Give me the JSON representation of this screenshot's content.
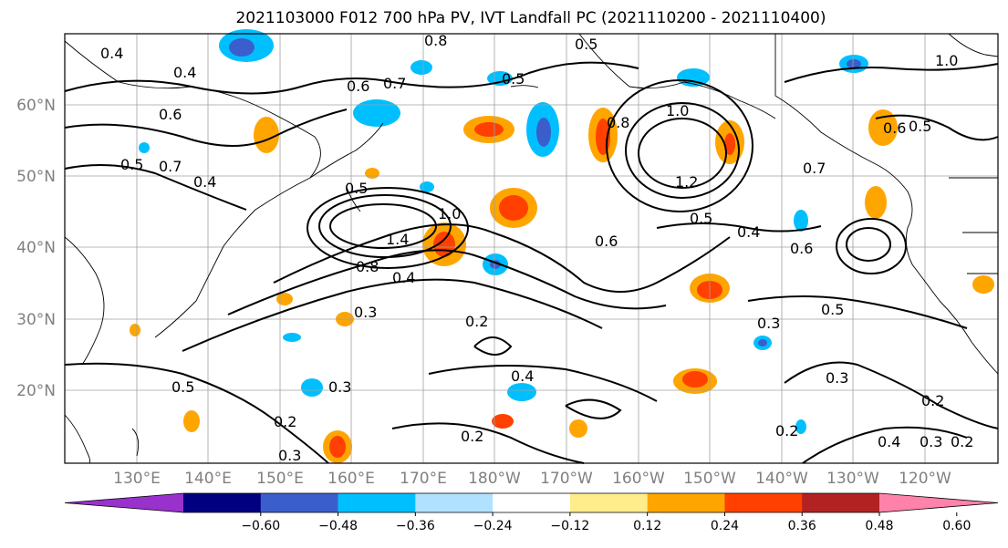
{
  "title": "2021103000 F012 700 hPa PV, IVT Landfall PC (2021110200 - 2021110400)",
  "lat_labels": [
    "60°N",
    "50°N",
    "40°N",
    "30°N",
    "20°N"
  ],
  "lon_labels": [
    "130°E",
    "140°E",
    "150°E",
    "160°E",
    "170°E",
    "180°W",
    "170°W",
    "160°W",
    "150°W",
    "140°W",
    "130°W",
    "120°W"
  ],
  "colorbar": {
    "ticks": [
      "−0.60",
      "−0.48",
      "−0.36",
      "−0.24",
      "−0.12",
      "0.12",
      "0.24",
      "0.36",
      "0.48",
      "0.60"
    ],
    "colors": [
      "#9932cc",
      "#000080",
      "#3a5fcd",
      "#00bfff",
      "#b0e2ff",
      "#ffffff",
      "#ffec8b",
      "#ffa500",
      "#ff4000",
      "#b22222",
      "#ff82ab"
    ]
  },
  "contour_labels": [
    "0.4",
    "0.4",
    "0.6",
    "0.7",
    "0.5",
    "0.4",
    "0.6",
    "0.7",
    "0.5",
    "0.8",
    "0.5",
    "1.0",
    "0.8",
    "1.2",
    "0.7",
    "0.5",
    "1.4",
    "1.0",
    "0.8",
    "0.4",
    "0.3",
    "0.2",
    "0.6",
    "0.6",
    "0.4",
    "0.5",
    "0.3",
    "0.5",
    "0.4",
    "0.2",
    "0.3",
    "0.3",
    "0.2",
    "0.3",
    "0.5",
    "0.2",
    "0.2",
    "0.3",
    "0.2",
    "0.4",
    "1.0",
    "0.6",
    "0.5"
  ]
}
